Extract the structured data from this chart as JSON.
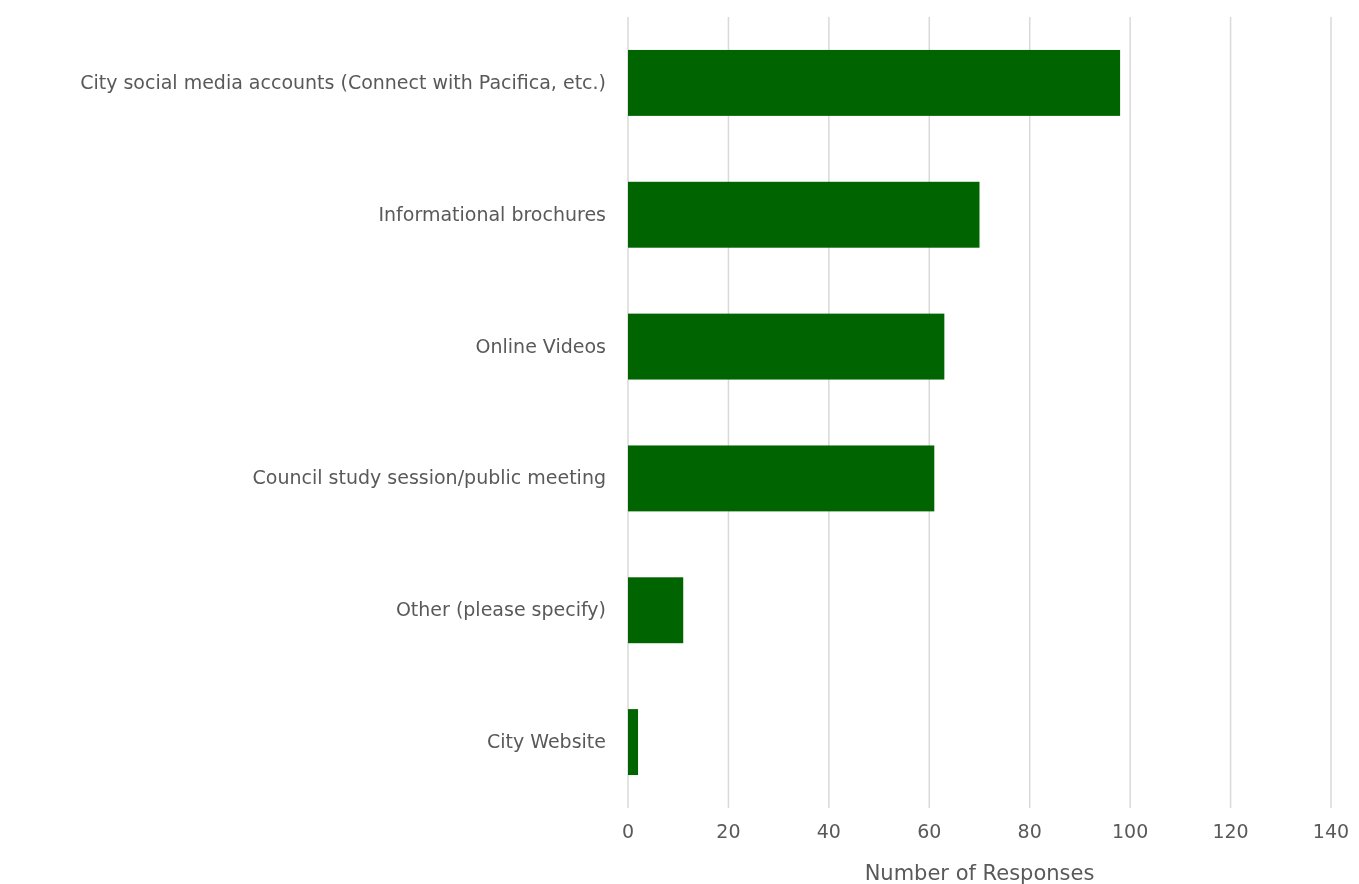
{
  "chart_data": {
    "type": "bar",
    "orientation": "horizontal",
    "categories": [
      "City social media accounts (Connect with Pacifica, etc.)",
      "Informational brochures",
      "Online Videos",
      "Council study session/public meeting",
      "Other (please specify)",
      "City Website"
    ],
    "values": [
      98,
      70,
      63,
      61,
      11,
      2
    ],
    "color": "#006400",
    "xlabel": "Number of Responses",
    "xlim": [
      0,
      140
    ],
    "xticks": [
      0,
      20,
      40,
      60,
      80,
      100,
      120,
      140
    ],
    "grid": "x"
  }
}
